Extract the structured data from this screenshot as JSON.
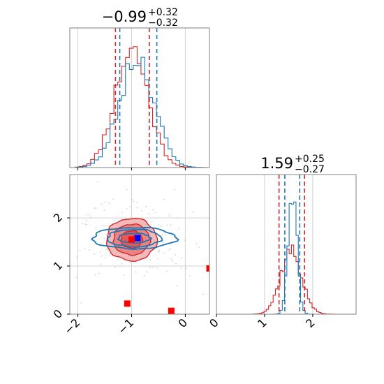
{
  "chart_data": {
    "type": "corner",
    "grid": true,
    "colors": {
      "red": "#d62728",
      "blue": "#1f77b4",
      "marker_red": "#ff0000",
      "marker_blue": "#0000ff",
      "fill_red": "#e88a8a"
    },
    "parameters": [
      {
        "title_value": "−0.99",
        "title_sup": "+0.32",
        "title_sub": "−0.32",
        "range": [
          -2.15,
          0.45
        ],
        "ticks": [
          -2,
          -1,
          0
        ],
        "tick_labels": [
          "−2",
          "−1",
          "0"
        ]
      },
      {
        "title_value": "1.59",
        "title_sup": "+0.25",
        "title_sub": "−0.27",
        "range": [
          0,
          2.9
        ],
        "ticks": [
          0,
          1,
          2
        ],
        "tick_labels": [
          "0",
          "1",
          "2"
        ]
      }
    ],
    "histograms": [
      {
        "param": 0,
        "series": [
          {
            "name": "",
            "color": "red",
            "mean": -1.0,
            "sd": 0.31,
            "peak": 0.85,
            "bins": 34,
            "range": [
              -2.05,
              0.4
            ],
            "seed": 11
          },
          {
            "name": "",
            "color": "blue",
            "mean": -0.9,
            "sd": 0.32,
            "peak": 0.8,
            "bins": 34,
            "range": [
              -2.05,
              0.4
            ],
            "seed": 23
          }
        ],
        "quantiles": [
          {
            "color": "red",
            "values": [
              -1.3,
              -0.67
            ]
          },
          {
            "color": "blue",
            "values": [
              -1.22,
              -0.53
            ]
          }
        ]
      },
      {
        "param": 1,
        "series": [
          {
            "name": "",
            "color": "red",
            "mean": 1.55,
            "sd": 0.22,
            "peak": 0.45,
            "bins": 40,
            "range": [
              0.75,
              2.65
            ],
            "seed": 37
          },
          {
            "name": "",
            "color": "blue",
            "mean": 1.58,
            "sd": 0.09,
            "peak": 0.9,
            "bins": 40,
            "range": [
              0.75,
              2.65
            ],
            "seed": 51
          }
        ],
        "quantiles": [
          {
            "color": "red",
            "values": [
              1.3,
              1.83
            ]
          },
          {
            "color": "blue",
            "values": [
              1.42,
              1.73
            ]
          }
        ]
      }
    ],
    "contours_2d": {
      "x_param": 0,
      "y_param": 1,
      "red": {
        "cx": -1.0,
        "cy": 1.55,
        "levels": [
          {
            "rx": 0.2,
            "ry": 0.18,
            "fill": true
          },
          {
            "rx": 0.34,
            "ry": 0.32,
            "fill": true
          },
          {
            "rx": 0.47,
            "ry": 0.44,
            "fill": true
          }
        ]
      },
      "blue": {
        "cx": -0.95,
        "cy": 1.58,
        "levels": [
          {
            "rx": 0.3,
            "ry": 0.1
          },
          {
            "rx": 0.5,
            "ry": 0.18
          },
          {
            "rx": 0.78,
            "ry": 0.22
          }
        ]
      }
    },
    "markers": [
      {
        "x": -0.89,
        "y": 1.58,
        "color": "marker_blue"
      },
      {
        "x": -1.0,
        "y": 1.55,
        "color": "marker_red"
      },
      {
        "x": -1.08,
        "y": 0.22,
        "color": "marker_red"
      },
      {
        "x": -0.26,
        "y": 0.07,
        "color": "marker_red"
      },
      {
        "x": 0.45,
        "y": 0.95,
        "color": "marker_red"
      }
    ]
  }
}
